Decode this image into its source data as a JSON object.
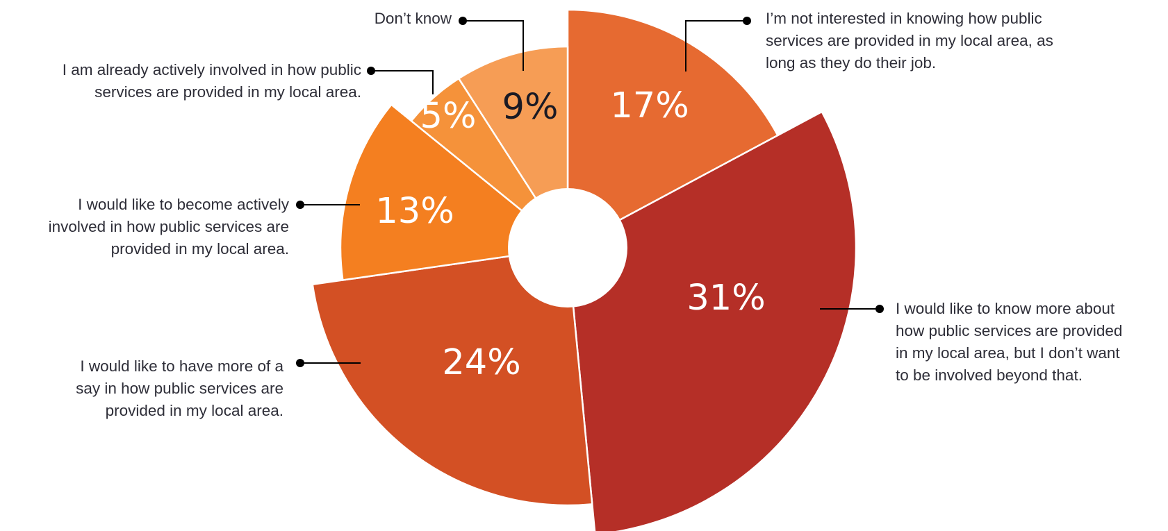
{
  "chart_data": {
    "type": "pie",
    "title": "",
    "slices": [
      {
        "label": "I’m not interested in knowing how public services are provided in my local area, as long as they do their job.",
        "value": 17,
        "display": "17%",
        "color": "#e66a31",
        "text_color": "#ffffff"
      },
      {
        "label": "I would like to know more about how public services are provided in my local area, but I don’t want to be involved beyond that.",
        "value": 31,
        "display": "31%",
        "color": "#b52f27",
        "text_color": "#ffffff"
      },
      {
        "label": "I would like to have more of a say in how public services are provided in my local area.",
        "value": 24,
        "display": "24%",
        "color": "#d35024",
        "text_color": "#ffffff"
      },
      {
        "label": "I would like to become actively involved in how public services are provided in my local area.",
        "value": 13,
        "display": "13%",
        "color": "#f47f20",
        "text_color": "#ffffff"
      },
      {
        "label": "I am already actively involved in how public services are provided in my local area.",
        "value": 5,
        "display": "5%",
        "color": "#f5923a",
        "text_color": "#ffffff"
      },
      {
        "label": "Don’t know",
        "value": 9,
        "display": "9%",
        "color": "#f69d55",
        "text_color": "#1a1a24"
      }
    ],
    "label_lines": [
      [
        "I’m not interested in knowing how public",
        "services are provided in my local area, as",
        "long as they do their job."
      ],
      [
        "I would like to know more about",
        "how public services are provided",
        "in my local area, but I don’t want",
        "to be involved beyond that."
      ],
      [
        "I would like to have more of a",
        "say in how public services are",
        "provided in my local area."
      ],
      [
        "I would like to become actively",
        "involved in how public services are",
        "provided in my local area."
      ],
      [
        "I am already actively involved in how public",
        "services are provided in my local area."
      ],
      [
        "Don’t know"
      ]
    ]
  }
}
